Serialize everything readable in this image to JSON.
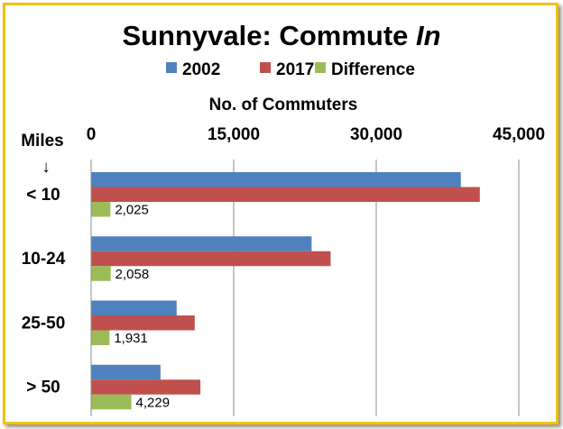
{
  "chart_data": {
    "type": "bar",
    "orientation": "horizontal",
    "title_main": "Sunnyvale: Commute ",
    "title_italic": "In",
    "xlabel": "No. of Commuters",
    "ylabel": "Miles",
    "ylabel_arrow": "↓",
    "xlim": [
      0,
      45000
    ],
    "x_ticks": [
      0,
      15000,
      30000,
      45000
    ],
    "x_tick_labels": [
      "0",
      "15,000",
      "30,000",
      "45,000"
    ],
    "grid": true,
    "legend_position": "top",
    "categories": [
      "< 10",
      "10-24",
      "25-50",
      "> 50"
    ],
    "series": [
      {
        "name": "2002",
        "color": "#4f81bd",
        "values": [
          38900,
          23200,
          9000,
          7300
        ]
      },
      {
        "name": "2017",
        "color": "#c0504d",
        "values": [
          40900,
          25200,
          10900,
          11500
        ]
      },
      {
        "name": "Difference",
        "color": "#9bbb59",
        "values": [
          2025,
          2058,
          1931,
          4229
        ],
        "labels": [
          "2,025",
          "2,058",
          "1,931",
          "4,229"
        ]
      }
    ]
  }
}
